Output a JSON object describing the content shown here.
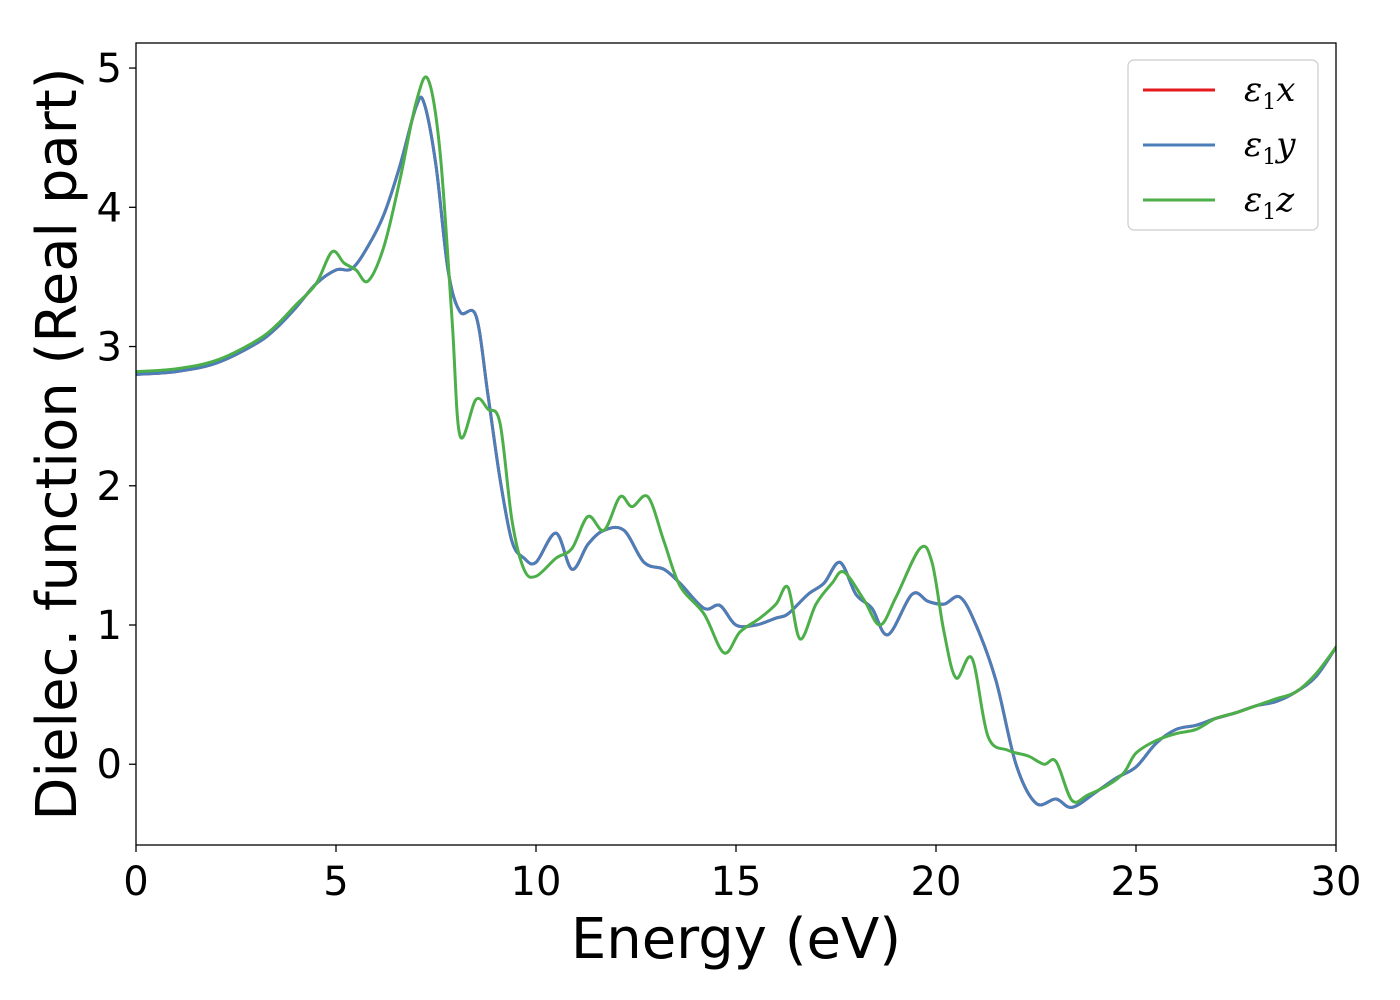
{
  "chart_data": {
    "type": "line",
    "xlabel": "Energy (eV)",
    "ylabel": "Dielec. function (Real part)",
    "xlim": [
      0,
      30
    ],
    "ylim": [
      -0.58,
      5.18
    ],
    "xticks": [
      0,
      5,
      10,
      15,
      20,
      25,
      30
    ],
    "yticks": [
      0,
      1,
      2,
      3,
      4,
      5
    ],
    "xtick_labels": [
      "0",
      "5",
      "10",
      "15",
      "20",
      "25",
      "30"
    ],
    "ytick_labels": [
      "0",
      "1",
      "2",
      "3",
      "4",
      "5"
    ],
    "grid": false,
    "legend_position": "top-right",
    "series": [
      {
        "name": "ε1x",
        "color": "#e41a1c",
        "x": [
          0,
          1,
          2,
          3,
          3.5,
          4,
          4.5,
          5,
          5.4,
          5.8,
          6.2,
          6.6,
          7,
          7.2,
          7.5,
          7.8,
          8.1,
          8.5,
          8.8,
          9.1,
          9.4,
          9.7,
          10,
          10.5,
          10.9,
          11.3,
          11.7,
          12.2,
          12.7,
          13.2,
          13.6,
          14.2,
          14.6,
          15,
          15.5,
          16,
          16.3,
          16.8,
          17.2,
          17.6,
          18,
          18.4,
          18.8,
          19.4,
          19.8,
          20.2,
          20.6,
          21,
          21.5,
          22,
          22.5,
          23,
          23.4,
          24,
          24.5,
          25,
          25.5,
          26,
          26.5,
          27,
          27.5,
          28,
          28.5,
          29,
          29.5,
          30
        ],
        "values": [
          2.8,
          2.82,
          2.88,
          3.02,
          3.13,
          3.28,
          3.45,
          3.55,
          3.56,
          3.72,
          3.95,
          4.3,
          4.72,
          4.75,
          4.3,
          3.55,
          3.25,
          3.22,
          2.65,
          2.05,
          1.6,
          1.48,
          1.45,
          1.66,
          1.4,
          1.58,
          1.68,
          1.68,
          1.45,
          1.4,
          1.3,
          1.12,
          1.14,
          1.0,
          1.0,
          1.05,
          1.08,
          1.22,
          1.3,
          1.45,
          1.22,
          1.12,
          0.93,
          1.22,
          1.17,
          1.15,
          1.2,
          1.0,
          0.6,
          0.0,
          -0.28,
          -0.25,
          -0.31,
          -0.2,
          -0.1,
          -0.02,
          0.15,
          0.25,
          0.28,
          0.33,
          0.37,
          0.42,
          0.45,
          0.52,
          0.63,
          0.84
        ]
      },
      {
        "name": "ε1y",
        "color": "#4a7fba",
        "x": [
          0,
          1,
          2,
          3,
          3.5,
          4,
          4.5,
          5,
          5.4,
          5.8,
          6.2,
          6.6,
          7,
          7.2,
          7.5,
          7.8,
          8.1,
          8.5,
          8.8,
          9.1,
          9.4,
          9.7,
          10,
          10.5,
          10.9,
          11.3,
          11.7,
          12.2,
          12.7,
          13.2,
          13.6,
          14.2,
          14.6,
          15,
          15.5,
          16,
          16.3,
          16.8,
          17.2,
          17.6,
          18,
          18.4,
          18.8,
          19.4,
          19.8,
          20.2,
          20.6,
          21,
          21.5,
          22,
          22.5,
          23,
          23.4,
          24,
          24.5,
          25,
          25.5,
          26,
          26.5,
          27,
          27.5,
          28,
          28.5,
          29,
          29.5,
          30
        ],
        "values": [
          2.8,
          2.82,
          2.88,
          3.02,
          3.13,
          3.28,
          3.45,
          3.55,
          3.56,
          3.72,
          3.95,
          4.3,
          4.72,
          4.75,
          4.3,
          3.55,
          3.25,
          3.22,
          2.65,
          2.05,
          1.6,
          1.48,
          1.45,
          1.66,
          1.4,
          1.58,
          1.68,
          1.68,
          1.45,
          1.4,
          1.3,
          1.12,
          1.14,
          1.0,
          1.0,
          1.05,
          1.08,
          1.22,
          1.3,
          1.45,
          1.22,
          1.12,
          0.93,
          1.22,
          1.17,
          1.15,
          1.2,
          1.0,
          0.6,
          0.0,
          -0.28,
          -0.25,
          -0.31,
          -0.2,
          -0.1,
          -0.02,
          0.15,
          0.25,
          0.28,
          0.33,
          0.37,
          0.42,
          0.45,
          0.52,
          0.63,
          0.84
        ]
      },
      {
        "name": "ε1z",
        "color": "#4daf4a",
        "x": [
          0,
          1,
          2,
          3,
          3.5,
          4,
          4.5,
          4.9,
          5.2,
          5.5,
          5.8,
          6.2,
          6.6,
          7,
          7.3,
          7.6,
          7.9,
          8.1,
          8.5,
          8.8,
          9.1,
          9.4,
          9.7,
          10,
          10.5,
          10.9,
          11.3,
          11.7,
          12.1,
          12.4,
          12.8,
          13.2,
          13.6,
          14.2,
          14.7,
          15.1,
          15.6,
          16,
          16.3,
          16.6,
          17,
          17.4,
          17.7,
          18.2,
          18.6,
          19,
          19.6,
          19.9,
          20.2,
          20.5,
          20.9,
          21.3,
          21.8,
          22.3,
          22.7,
          23,
          23.4,
          23.8,
          24.3,
          24.7,
          25,
          25.5,
          26,
          26.5,
          27,
          27.5,
          28,
          28.5,
          29,
          29.5,
          30
        ],
        "values": [
          2.82,
          2.84,
          2.9,
          3.04,
          3.15,
          3.3,
          3.45,
          3.68,
          3.6,
          3.55,
          3.47,
          3.72,
          4.2,
          4.75,
          4.92,
          4.4,
          3.2,
          2.36,
          2.62,
          2.55,
          2.45,
          1.75,
          1.4,
          1.35,
          1.48,
          1.55,
          1.78,
          1.68,
          1.92,
          1.85,
          1.92,
          1.6,
          1.28,
          1.08,
          0.8,
          0.95,
          1.05,
          1.15,
          1.27,
          0.9,
          1.15,
          1.3,
          1.38,
          1.18,
          1.0,
          1.2,
          1.55,
          1.45,
          0.95,
          0.62,
          0.76,
          0.2,
          0.1,
          0.06,
          0.0,
          0.02,
          -0.26,
          -0.22,
          -0.15,
          -0.06,
          0.08,
          0.17,
          0.22,
          0.25,
          0.33,
          0.37,
          0.42,
          0.47,
          0.52,
          0.65,
          0.84
        ]
      }
    ]
  }
}
